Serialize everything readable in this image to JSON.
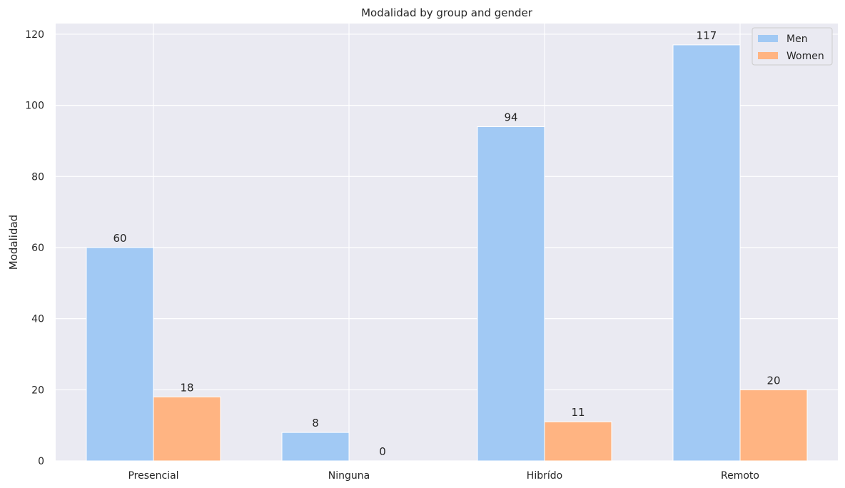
{
  "chart_data": {
    "type": "bar",
    "title": "Modalidad by group and gender",
    "xlabel": "",
    "ylabel": "Modalidad",
    "categories": [
      "Presencial",
      "Ninguna",
      "Hibrído",
      "Remoto"
    ],
    "series": [
      {
        "name": "Men",
        "values": [
          60,
          8,
          94,
          117
        ],
        "color": "#a1c9f4"
      },
      {
        "name": "Women",
        "values": [
          18,
          0,
          11,
          20
        ],
        "color": "#ffb482"
      }
    ],
    "ylim": [
      0,
      123
    ],
    "yticks": [
      0,
      20,
      40,
      60,
      80,
      100,
      120
    ],
    "grid": true,
    "legend": "top-right",
    "background": "#eaeaf2"
  }
}
